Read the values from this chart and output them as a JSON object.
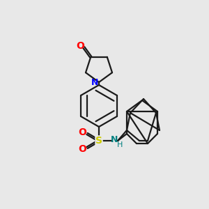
{
  "background_color": "#e8e8e8",
  "bond_color": "#1a1a1a",
  "N_color": "#0000ff",
  "O_color": "#ff0000",
  "S_color": "#cccc00",
  "NH_color": "#008080",
  "line_width": 1.6,
  "figsize": [
    3.0,
    3.0
  ],
  "dpi": 100,
  "xlim": [
    0,
    3.0
  ],
  "ylim": [
    0,
    3.0
  ]
}
